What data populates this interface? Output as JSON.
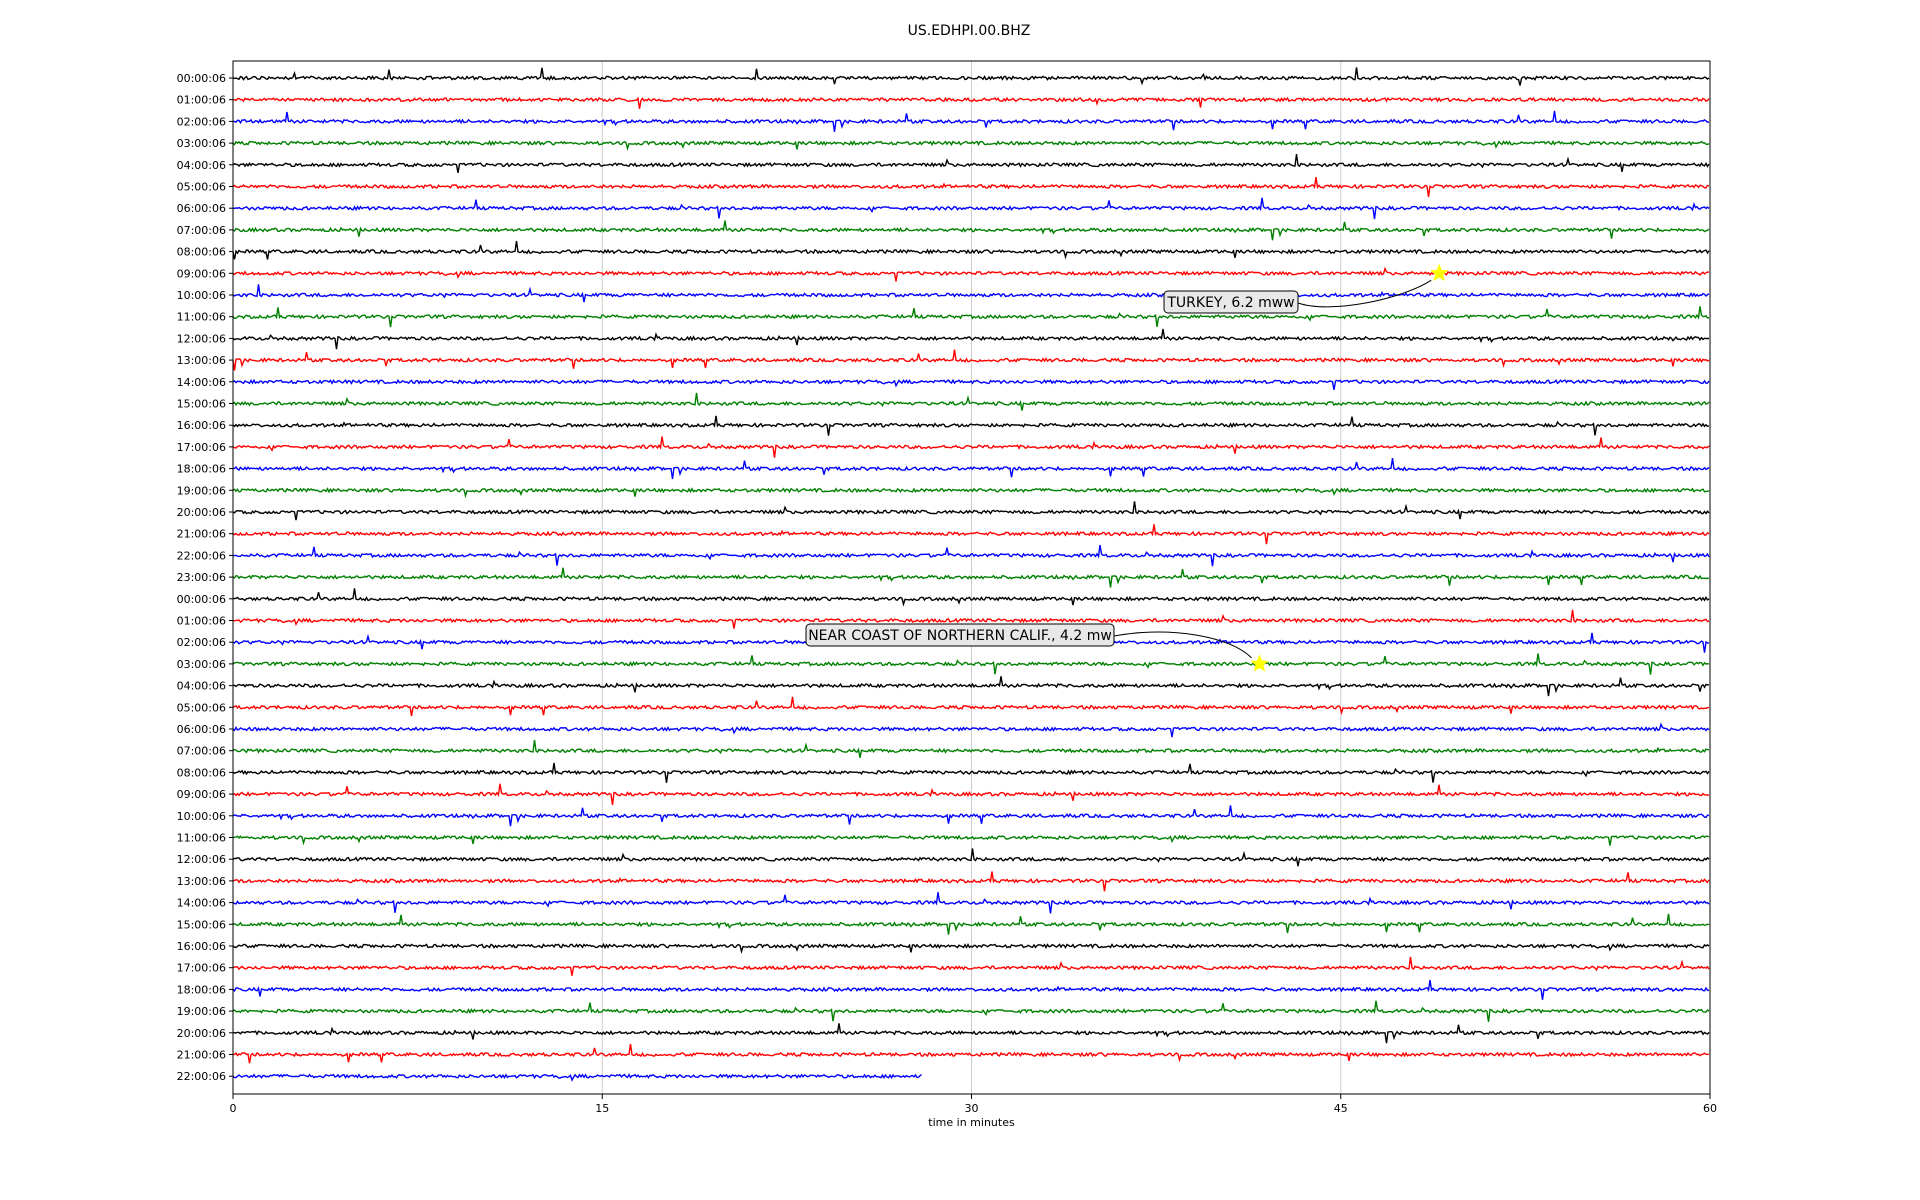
{
  "chart_data": {
    "type": "line",
    "title": "US.EDHPI.00.BHZ",
    "xlabel": "time in minutes",
    "ylabel": "",
    "xlim": [
      0,
      60
    ],
    "x_ticks": [
      0,
      15,
      30,
      45,
      60
    ],
    "grid": "vertical-only",
    "trace_colors": [
      "#000000",
      "#ff0000",
      "#0000ff",
      "#008000"
    ],
    "row_labels": [
      "00:00:06",
      "01:00:06",
      "02:00:06",
      "03:00:06",
      "04:00:06",
      "05:00:06",
      "06:00:06",
      "07:00:06",
      "08:00:06",
      "09:00:06",
      "10:00:06",
      "11:00:06",
      "12:00:06",
      "13:00:06",
      "14:00:06",
      "15:00:06",
      "16:00:06",
      "17:00:06",
      "18:00:06",
      "19:00:06",
      "20:00:06",
      "21:00:06",
      "22:00:06",
      "23:00:06",
      "00:00:06",
      "01:00:06",
      "02:00:06",
      "03:00:06",
      "04:00:06",
      "05:00:06",
      "06:00:06",
      "07:00:06",
      "08:00:06",
      "09:00:06",
      "10:00:06",
      "11:00:06",
      "12:00:06",
      "13:00:06",
      "14:00:06",
      "15:00:06",
      "16:00:06",
      "17:00:06",
      "18:00:06",
      "19:00:06",
      "20:00:06",
      "21:00:06",
      "22:00:06"
    ],
    "last_row_end_minute": 28,
    "events": [
      {
        "label": "TURKEY, 6.2 mww",
        "row": 9,
        "minute": 49
      },
      {
        "label": "NEAR COAST OF NORTHERN CALIF., 4.2 mw",
        "row": 27,
        "minute": 41.7
      }
    ],
    "marker_color": "#ffff00"
  }
}
